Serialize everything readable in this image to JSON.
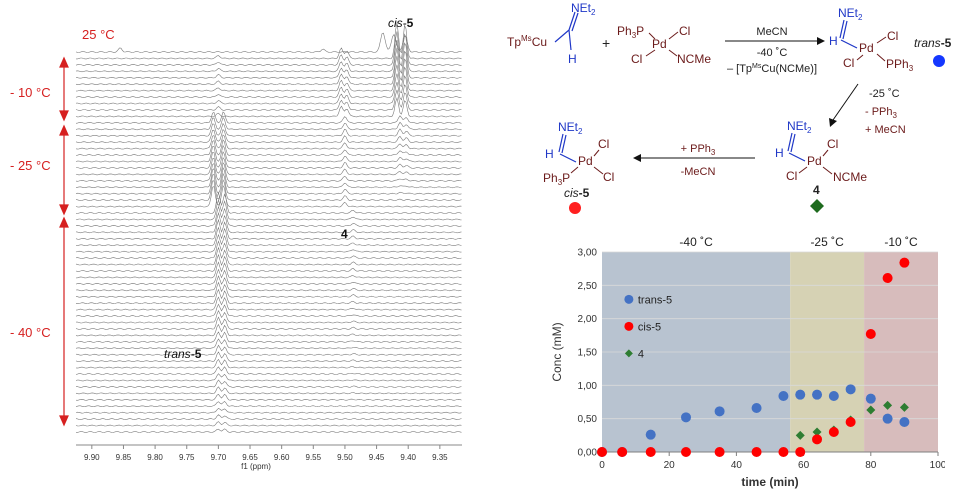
{
  "nmr": {
    "temp_top": "25 °C",
    "temp_10": "- 10 °C",
    "temp_25": "- 25 °C",
    "temp_40": "- 40 °C",
    "label_cis5": "cis-5",
    "label_4": "4",
    "label_trans5": "trans-5",
    "xaxis_label": "f1 (ppm)",
    "ticks": [
      "9.90",
      "9.85",
      "9.80",
      "9.75",
      "9.70",
      "9.65",
      "9.60",
      "9.55",
      "9.50",
      "9.45",
      "9.40",
      "9.35"
    ]
  },
  "scheme": {
    "reagent_left": "Tp",
    "reagent_left_sup": "Ms",
    "reagent_cu": "Cu",
    "net2": "NEt",
    "h": "H",
    "plus": "+",
    "ph3p": "Ph",
    "pd": "Pd",
    "cl": "Cl",
    "ncme": "NCMe",
    "pph3": "PPh",
    "arrow1_top": "MeCN",
    "arrow1_mid": "-40 ˚C",
    "arrow1_bot": "– [Tp",
    "arrow1_bot_sup": "Ms",
    "arrow1_bot_end": "Cu(NCMe)]",
    "arrow2_l1": "-25 ˚C",
    "arrow2_l2": "- PPh",
    "arrow2_l3": "+ MeCN",
    "arrow3_top": "+ PPh",
    "arrow3_bot": "-MeCN",
    "trans_label_a": "trans",
    "trans_label_b": "-5",
    "cis_label_a": "cis",
    "cis_label_b": "-5",
    "four_label": "4"
  },
  "colors": {
    "trans5": "#4472c4",
    "cis5": "#ff0000",
    "four": "#2e7d32",
    "bg_blue": "#b8c3d0",
    "bg_yellow": "#d6d2b4",
    "bg_pink": "#d7bcbc",
    "red_axis": "#d62020",
    "chem_dark": "#6b1a1a",
    "chem_blue": "#1f37c7"
  },
  "chart_data": {
    "type": "scatter",
    "xlabel": "time (min)",
    "ylabel": "Conc (mM)",
    "xlim": [
      0,
      100
    ],
    "ylim": [
      0,
      3
    ],
    "xticks": [
      0,
      20,
      40,
      60,
      80,
      100
    ],
    "yticks": [
      "0,00",
      "0,50",
      "1,00",
      "1,50",
      "2,00",
      "2,50",
      "3,00"
    ],
    "regions": [
      {
        "label": "-40 ˚C",
        "from": 0,
        "to": 56,
        "color": "#b8c3d0"
      },
      {
        "label": "-25 ˚C",
        "from": 56,
        "to": 78,
        "color": "#d6d2b4"
      },
      {
        "label": "-10 ˚C",
        "from": 78,
        "to": 100,
        "color": "#d7bcbc"
      }
    ],
    "series": [
      {
        "name": "trans-5",
        "marker": "circle",
        "color": "#4472c4",
        "x": [
          0,
          6,
          14.5,
          25,
          35,
          46,
          54,
          59,
          64,
          69,
          74,
          80,
          85,
          90
        ],
        "y": [
          0,
          0,
          0.26,
          0.52,
          0.61,
          0.66,
          0.84,
          0.86,
          0.86,
          0.84,
          0.94,
          0.8,
          0.5,
          0.45
        ]
      },
      {
        "name": "cis-5",
        "marker": "circle",
        "color": "#ff0000",
        "x": [
          0,
          6,
          14.5,
          25,
          35,
          46,
          54,
          59,
          64,
          69,
          74,
          80,
          85,
          90
        ],
        "y": [
          0,
          0,
          0,
          0,
          0,
          0,
          0,
          0,
          0.19,
          0.3,
          0.45,
          1.77,
          2.61,
          2.84
        ]
      },
      {
        "name": "4",
        "marker": "diamond",
        "color": "#2e7d32",
        "x": [
          0,
          6,
          14.5,
          25,
          35,
          46,
          54,
          59,
          64,
          69,
          74,
          80,
          85,
          90
        ],
        "y": [
          0,
          0,
          0,
          0,
          0,
          0,
          0,
          0.25,
          0.3,
          0.33,
          0.48,
          0.63,
          0.7,
          0.67
        ]
      }
    ]
  }
}
